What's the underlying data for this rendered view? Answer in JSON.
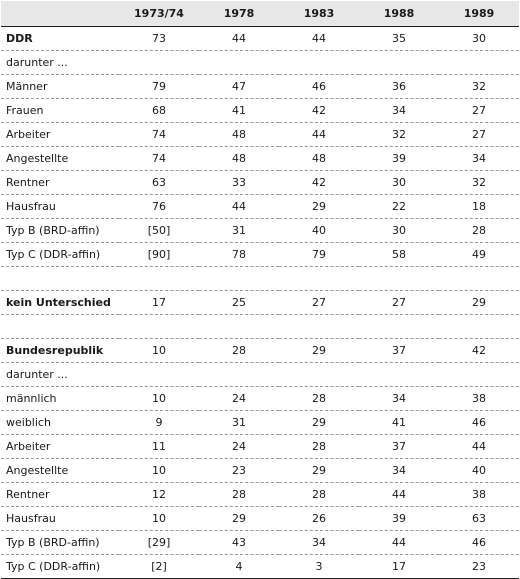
{
  "table": {
    "headers": [
      "",
      "1973/74",
      "1978",
      "1983",
      "1988",
      "1989"
    ],
    "rows": [
      {
        "label": "DDR",
        "bold": true,
        "values": [
          "73",
          "44",
          "44",
          "35",
          "30"
        ]
      },
      {
        "label": "darunter ...",
        "values": [
          "",
          "",
          "",
          "",
          ""
        ]
      },
      {
        "label": "Männer",
        "values": [
          "79",
          "47",
          "46",
          "36",
          "32"
        ]
      },
      {
        "label": "Frauen",
        "values": [
          "68",
          "41",
          "42",
          "34",
          "27"
        ]
      },
      {
        "label": "Arbeiter",
        "values": [
          "74",
          "48",
          "44",
          "32",
          "27"
        ]
      },
      {
        "label": "Angestellte",
        "values": [
          "74",
          "48",
          "48",
          "39",
          "34"
        ]
      },
      {
        "label": "Rentner",
        "values": [
          "63",
          "33",
          "42",
          "30",
          "32"
        ]
      },
      {
        "label": "Hausfrau",
        "values": [
          "76",
          "44",
          "29",
          "22",
          "18"
        ]
      },
      {
        "label": "Typ B (BRD-affin)",
        "values": [
          "[50]",
          "31",
          "40",
          "30",
          "28"
        ]
      },
      {
        "label": "Typ C (DDR-affin)",
        "values": [
          "[90]",
          "78",
          "79",
          "58",
          "49"
        ]
      },
      {
        "label": "",
        "blank": true,
        "values": [
          "",
          "",
          "",
          "",
          ""
        ]
      },
      {
        "label": "kein Unterschied",
        "bold": true,
        "values": [
          "17",
          "25",
          "27",
          "27",
          "29"
        ]
      },
      {
        "label": "",
        "blank": true,
        "values": [
          "",
          "",
          "",
          "",
          ""
        ]
      },
      {
        "label": "Bundesrepublik",
        "bold": true,
        "values": [
          "10",
          "28",
          "29",
          "37",
          "42"
        ]
      },
      {
        "label": "darunter ...",
        "values": [
          "",
          "",
          "",
          "",
          ""
        ]
      },
      {
        "label": "männlich",
        "values": [
          "10",
          "24",
          "28",
          "34",
          "38"
        ]
      },
      {
        "label": "weiblich",
        "values": [
          "9",
          "31",
          "29",
          "41",
          "46"
        ]
      },
      {
        "label": "Arbeiter",
        "values": [
          "11",
          "24",
          "28",
          "37",
          "44"
        ]
      },
      {
        "label": "Angestellte",
        "values": [
          "10",
          "23",
          "29",
          "34",
          "40"
        ]
      },
      {
        "label": "Rentner",
        "values": [
          "12",
          "28",
          "28",
          "44",
          "38"
        ]
      },
      {
        "label": "Hausfrau",
        "values": [
          "10",
          "29",
          "26",
          "39",
          "63"
        ]
      },
      {
        "label": "Typ B (BRD-affin)",
        "values": [
          "[29]",
          "43",
          "34",
          "44",
          "46"
        ]
      },
      {
        "label": "Typ C (DDR-affin)",
        "values": [
          "[2]",
          "4",
          "3",
          "17",
          "23"
        ]
      }
    ]
  }
}
